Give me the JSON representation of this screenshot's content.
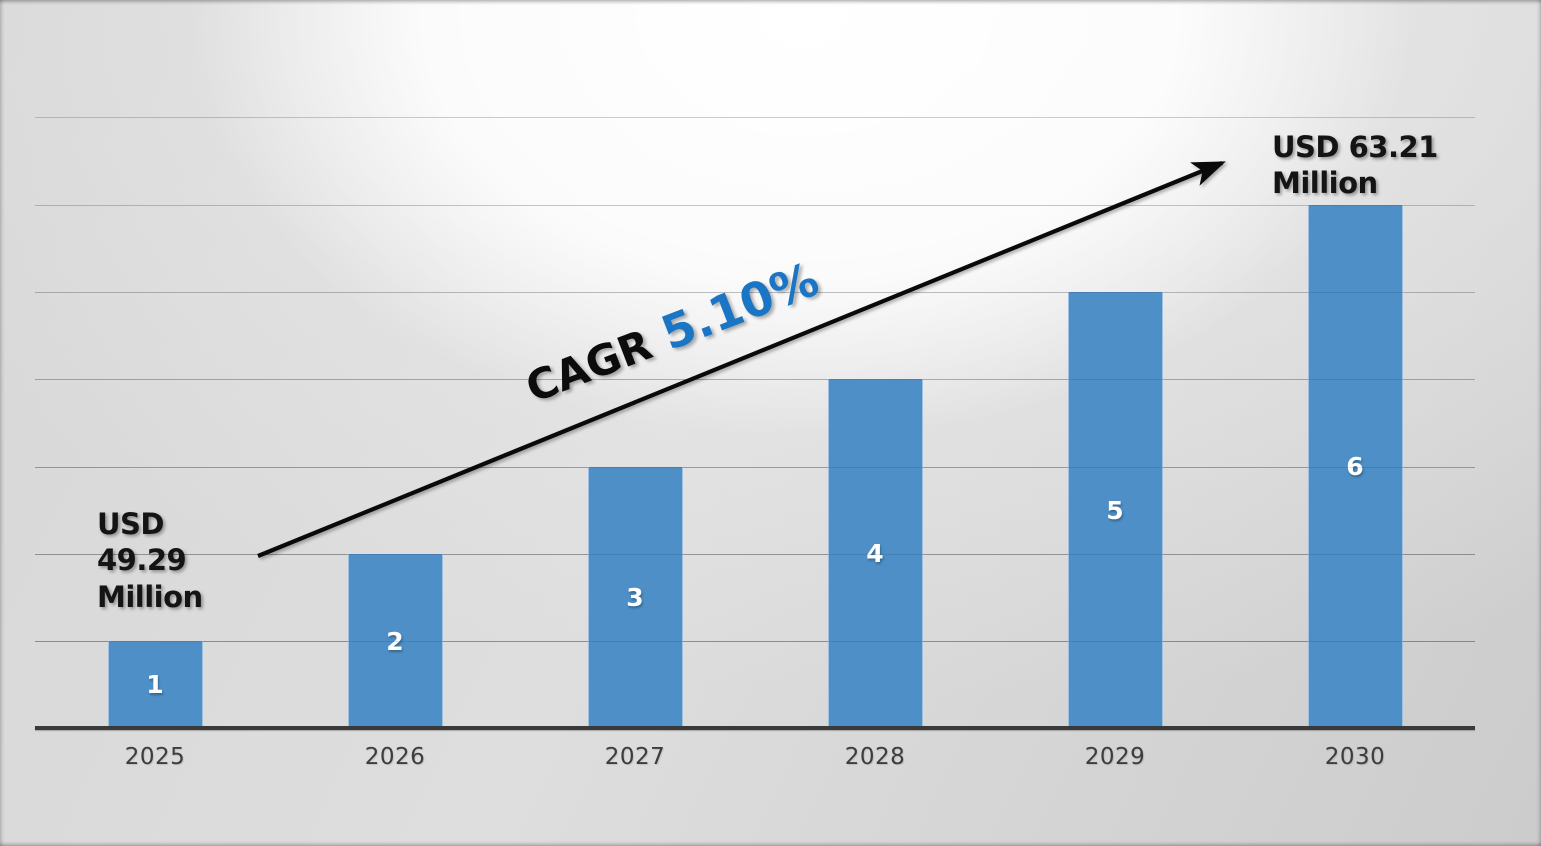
{
  "chart_data": {
    "type": "bar",
    "title": "",
    "xlabel": "",
    "ylabel": "",
    "categories": [
      "2025",
      "2026",
      "2027",
      "2028",
      "2029",
      "2030"
    ],
    "values": [
      1,
      2,
      3,
      4,
      5,
      6
    ],
    "bar_labels": [
      "1",
      "2",
      "3",
      "4",
      "5",
      "6"
    ],
    "ylim": [
      0,
      7
    ],
    "grid": true,
    "legend": false,
    "bar_color": "#4d8fc6",
    "annotations": {
      "start_value_label": "USD 49.29 Million",
      "end_value_label": "USD 63.21 Million",
      "cagr_label": "CAGR",
      "cagr_value": "5.10%",
      "cagr_value_color": "#1a75c5",
      "arrow_color": "#0a0a0a"
    }
  }
}
